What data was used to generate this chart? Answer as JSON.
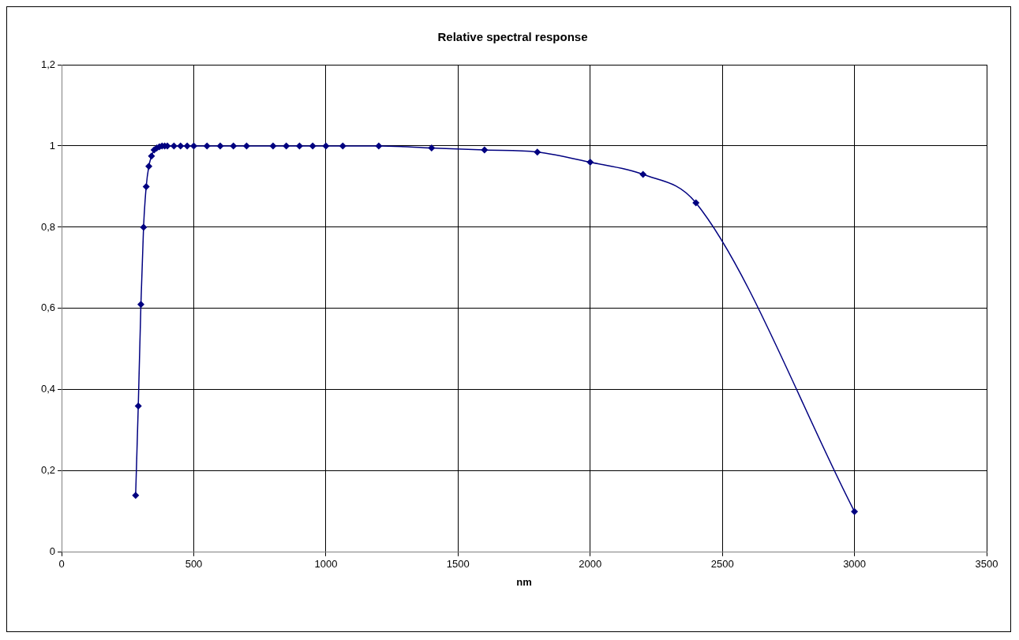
{
  "chart_data": {
    "type": "line",
    "title": "Relative spectral response",
    "xlabel": "nm",
    "x": [
      280,
      290,
      300,
      310,
      320,
      330,
      340,
      350,
      360,
      370,
      380,
      390,
      400,
      425,
      450,
      475,
      500,
      550,
      600,
      650,
      700,
      800,
      850,
      900,
      950,
      1000,
      1064,
      1200,
      1400,
      1600,
      1800,
      2000,
      2200,
      2400,
      3000
    ],
    "series": [
      {
        "color": "#000080",
        "values": [
          0.14,
          0.36,
          0.61,
          0.8,
          0.9,
          0.95,
          0.975,
          0.99,
          0.995,
          0.998,
          1,
          1,
          1,
          1,
          1,
          1,
          1,
          1,
          1,
          1,
          1,
          1,
          1,
          1,
          1,
          1,
          1,
          1,
          0.995,
          0.99,
          0.985,
          0.96,
          0.93,
          0.86,
          0.1
        ]
      }
    ],
    "xlim": [
      0,
      3500
    ],
    "xticks": [
      0,
      500,
      1000,
      1500,
      2000,
      2500,
      3000,
      3500
    ],
    "ylim": [
      0,
      1.2
    ],
    "yticks": [
      0,
      {
        "value": 0.2,
        "label": "0,2"
      },
      {
        "value": 0.4,
        "label": "0,4"
      },
      {
        "value": 0.6,
        "label": "0,6"
      },
      {
        "value": 0.8,
        "label": "0,8"
      },
      1,
      {
        "value": 1.2,
        "label": "1,2"
      }
    ],
    "grid": true,
    "legend": false,
    "marker": "diamond",
    "line_style": "solid"
  }
}
